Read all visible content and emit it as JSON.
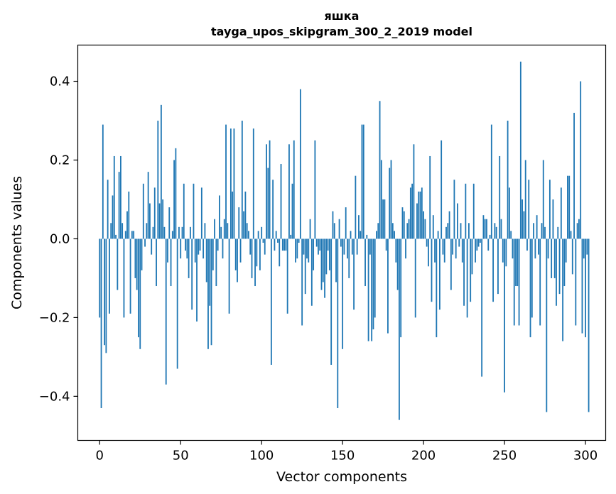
{
  "chart_data": {
    "type": "bar",
    "title": "яшка",
    "subtitle": "tayga_upos_skipgram_300_2_2019 model",
    "xlabel": "Vector components",
    "ylabel": "Components values",
    "xlim": [
      -13.5,
      312.5
    ],
    "ylim": [
      -0.512,
      0.492
    ],
    "xticks": [
      0,
      50,
      100,
      150,
      200,
      250,
      300
    ],
    "yticks": [
      -0.4,
      -0.2,
      0.0,
      0.2,
      0.4
    ],
    "xtick_labels": [
      "0",
      "50",
      "100",
      "150",
      "200",
      "250",
      "300"
    ],
    "ytick_labels": [
      "−0.4",
      "−0.2",
      "0.0",
      "0.2",
      "0.4"
    ],
    "bar_color": "#1f77b4",
    "values": [
      -0.2,
      -0.43,
      0.29,
      -0.27,
      -0.29,
      0.15,
      -0.19,
      0.04,
      0.11,
      0.21,
      0.01,
      -0.13,
      0.17,
      0.21,
      0.04,
      -0.2,
      0.02,
      0.07,
      0.12,
      -0.19,
      0.02,
      0.02,
      -0.1,
      -0.13,
      -0.25,
      -0.28,
      -0.08,
      0.14,
      -0.02,
      0.04,
      0.17,
      0.09,
      -0.04,
      0.03,
      0.13,
      -0.12,
      0.3,
      0.09,
      0.34,
      0.1,
      0.03,
      -0.37,
      -0.06,
      0.08,
      -0.12,
      0.02,
      0.2,
      0.23,
      -0.33,
      0.03,
      -0.05,
      0.03,
      0.14,
      -0.03,
      -0.05,
      -0.1,
      0.03,
      -0.18,
      0.14,
      -0.06,
      -0.21,
      -0.04,
      -0.03,
      0.13,
      -0.05,
      0.04,
      -0.11,
      -0.28,
      -0.17,
      -0.27,
      -0.08,
      0.05,
      -0.12,
      -0.03,
      0.11,
      0.03,
      -0.05,
      0.05,
      0.29,
      0.04,
      -0.19,
      0.28,
      0.12,
      0.28,
      -0.08,
      -0.11,
      0.08,
      -0.06,
      0.3,
      0.07,
      0.12,
      0.04,
      0.02,
      -0.04,
      -0.1,
      0.28,
      -0.12,
      -0.07,
      0.02,
      -0.08,
      0.03,
      -0.01,
      -0.04,
      0.24,
      0.18,
      0.25,
      -0.32,
      0.15,
      -0.03,
      0.02,
      -0.01,
      -0.07,
      0.19,
      -0.03,
      -0.03,
      -0.03,
      -0.19,
      0.24,
      0.01,
      0.14,
      0.25,
      -0.06,
      -0.05,
      -0.01,
      0.38,
      -0.22,
      -0.04,
      -0.14,
      -0.05,
      -0.06,
      0.05,
      -0.17,
      -0.08,
      0.25,
      -0.02,
      -0.04,
      -0.03,
      -0.13,
      -0.11,
      -0.15,
      -0.09,
      -0.03,
      -0.08,
      -0.32,
      0.07,
      0.04,
      -0.11,
      -0.43,
      0.05,
      -0.02,
      -0.28,
      -0.04,
      0.08,
      -0.05,
      -0.1,
      0.02,
      -0.04,
      -0.18,
      0.16,
      -0.04,
      0.06,
      0.02,
      0.29,
      0.29,
      -0.12,
      0.01,
      -0.26,
      -0.04,
      -0.26,
      -0.23,
      -0.2,
      0.02,
      0.04,
      0.35,
      0.2,
      0.1,
      0.1,
      -0.03,
      -0.24,
      0.18,
      0.2,
      0.04,
      0.02,
      -0.06,
      -0.13,
      -0.46,
      -0.25,
      0.08,
      0.07,
      -0.05,
      0.04,
      0.05,
      0.13,
      0.14,
      0.24,
      -0.2,
      0.09,
      0.12,
      0.12,
      0.13,
      0.07,
      0.05,
      -0.02,
      -0.07,
      0.21,
      -0.16,
      0.06,
      -0.06,
      -0.25,
      0.02,
      -0.18,
      0.25,
      -0.04,
      -0.06,
      0.03,
      0.04,
      0.07,
      -0.13,
      -0.04,
      0.15,
      -0.05,
      0.09,
      -0.02,
      0.04,
      -0.06,
      -0.17,
      0.14,
      -0.2,
      0.04,
      -0.16,
      -0.09,
      0.14,
      -0.06,
      -0.03,
      -0.02,
      -0.01,
      -0.35,
      0.06,
      0.05,
      0.05,
      -0.03,
      0.01,
      0.29,
      -0.16,
      0.04,
      0.03,
      -0.14,
      0.21,
      0.05,
      -0.06,
      -0.39,
      -0.07,
      0.3,
      0.13,
      0.02,
      -0.05,
      -0.22,
      -0.12,
      -0.12,
      -0.22,
      0.45,
      0.1,
      0.07,
      0.2,
      -0.03,
      0.15,
      -0.25,
      -0.2,
      0.04,
      -0.05,
      0.06,
      -0.04,
      -0.22,
      0.04,
      0.2,
      0.03,
      -0.44,
      -0.05,
      0.15,
      -0.1,
      0.1,
      -0.1,
      -0.17,
      0.03,
      -0.14,
      0.13,
      -0.26,
      -0.12,
      -0.06,
      0.16,
      0.16,
      0.02,
      -0.09,
      0.32,
      -0.22,
      0.04,
      0.05,
      0.4,
      -0.24,
      -0.05,
      -0.25,
      -0.04,
      -0.44
    ]
  }
}
